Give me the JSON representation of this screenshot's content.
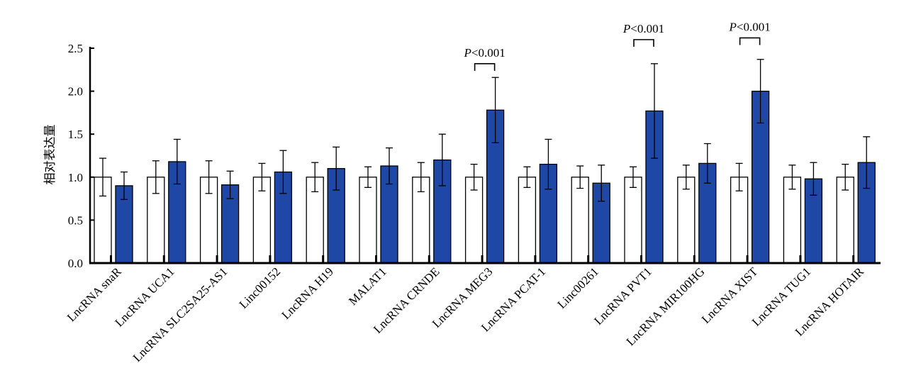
{
  "chart_data": {
    "type": "bar",
    "ylabel": "相对表达量",
    "ylim": [
      0,
      2.5
    ],
    "yticks": [
      "0.0",
      "0.5",
      "1.0",
      "1.5",
      "2.0",
      "2.5"
    ],
    "grid": false,
    "categories": [
      "LncRNA snaR",
      "LncRNA UCA1",
      "LncRNA SLC2SA25-AS1",
      "Linc00152",
      "LncRNA H19",
      "MALAT1",
      "LncRNA CRNDE",
      "LncRNA MEG3",
      "LncRNA PCAT-1",
      "Linc00261",
      "LncRNA PVT1",
      "LncRNA MIR100HG",
      "LncRNA XIST",
      "LncRNA TUG1",
      "LncRNA HOTAIR"
    ],
    "series": [
      {
        "color": "#ffffff",
        "values": [
          1.0,
          1.0,
          1.0,
          1.0,
          1.0,
          1.0,
          1.0,
          1.0,
          1.0,
          1.0,
          1.0,
          1.0,
          1.0,
          1.0,
          1.0
        ],
        "errors": [
          0.22,
          0.19,
          0.19,
          0.16,
          0.17,
          0.12,
          0.17,
          0.15,
          0.12,
          0.13,
          0.12,
          0.14,
          0.16,
          0.14,
          0.15
        ]
      },
      {
        "color": "#1f48a6",
        "values": [
          0.9,
          1.18,
          0.91,
          1.06,
          1.1,
          1.13,
          1.2,
          1.78,
          1.15,
          0.93,
          1.77,
          1.16,
          2.0,
          0.98,
          1.17
        ],
        "errors": [
          0.16,
          0.26,
          0.16,
          0.25,
          0.25,
          0.21,
          0.3,
          0.38,
          0.29,
          0.21,
          0.55,
          0.23,
          0.37,
          0.19,
          0.3
        ]
      }
    ],
    "annotations": [
      {
        "category_index": 7,
        "text_italic": "P",
        "text": "<0.001",
        "y": 2.32
      },
      {
        "category_index": 10,
        "text_italic": "P",
        "text": "<0.001",
        "y": 2.6
      },
      {
        "category_index": 12,
        "text_italic": "P",
        "text": "<0.001",
        "y": 2.62
      }
    ]
  }
}
